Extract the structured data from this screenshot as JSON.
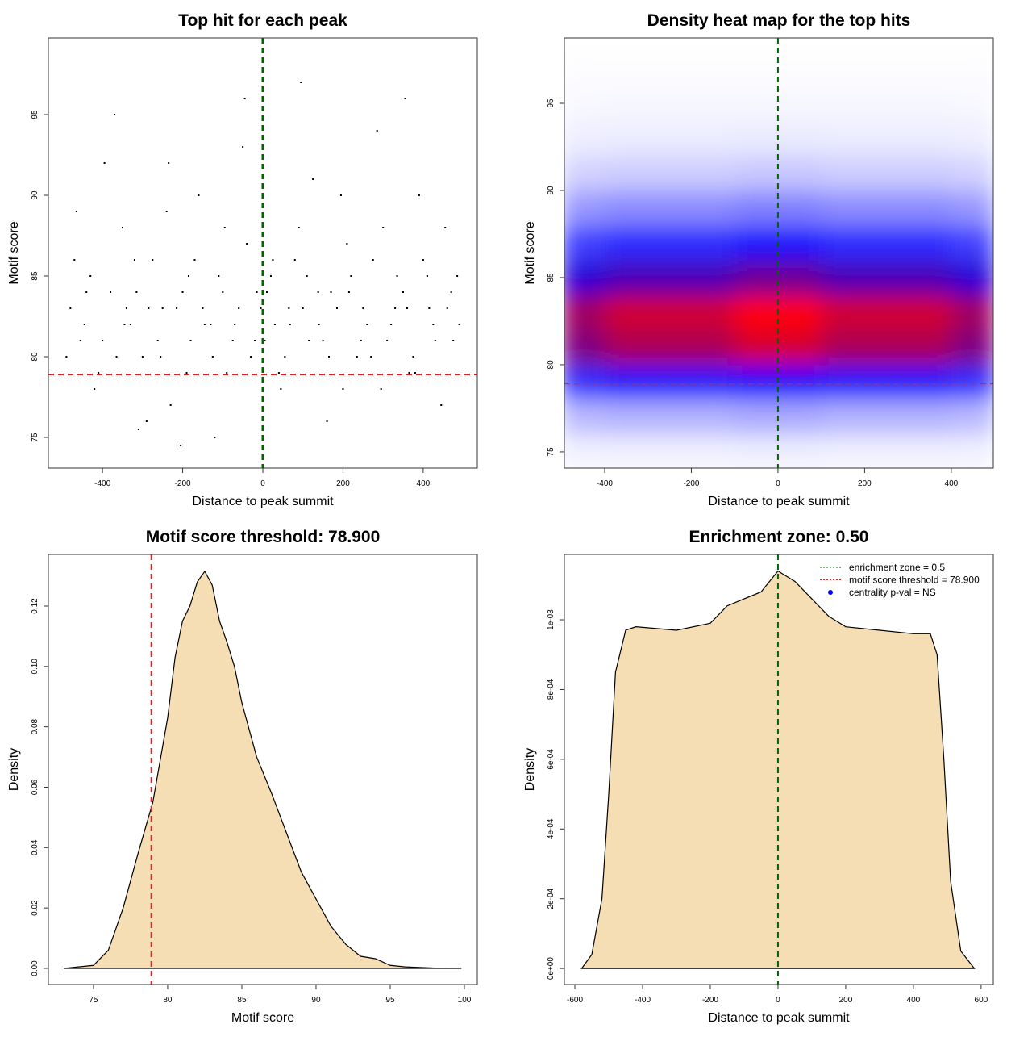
{
  "chart_data": [
    {
      "type": "scatter",
      "title": "Top hit for each peak",
      "x_label": "Distance to peak summit",
      "y_label": "Motif score",
      "xlim": [
        -535,
        535
      ],
      "ylim": [
        73.1,
        99.75
      ],
      "xticks": [
        -400,
        -200,
        0,
        200,
        400
      ],
      "yticks": [
        75,
        80,
        85,
        90,
        95
      ],
      "color": "#000000",
      "hline": {
        "value": 78.9,
        "color": "#dd2222"
      },
      "vline": {
        "value": 0,
        "color": "#006400"
      },
      "x": [
        -480,
        -455,
        -430,
        -410,
        -380,
        -350,
        -330,
        -300,
        -275,
        -250,
        -230,
        -200,
        -180,
        -160,
        -130,
        -110,
        -90,
        -60,
        -40,
        -20,
        10,
        30,
        55,
        80,
        100,
        125,
        150,
        170,
        200,
        220,
        250,
        270,
        300,
        320,
        350,
        380,
        400,
        430,
        460,
        485,
        -470,
        -445,
        -420,
        -395,
        -365,
        -340,
        -315,
        -290,
        -262,
        -240,
        -215,
        -190,
        -170,
        -145,
        -120,
        -100,
        -75,
        -50,
        -30,
        -5,
        20,
        45,
        68,
        90,
        115,
        138,
        160,
        185,
        210,
        235,
        260,
        285,
        310,
        335,
        365,
        390,
        415,
        445,
        470,
        490,
        -490,
        -465,
        -440,
        -400,
        -370,
        -345,
        -320,
        -285,
        -255,
        -235,
        -205,
        -185,
        -150,
        -125,
        -95,
        -70,
        -45,
        -15,
        5,
        25,
        40,
        65,
        95,
        110,
        140,
        165,
        195,
        215,
        245,
        275,
        295,
        330,
        355,
        375,
        410,
        425,
        455,
        475,
        -310,
        360
      ],
      "y": [
        83,
        81,
        85,
        79,
        84,
        88,
        82,
        80,
        86,
        83,
        77,
        84,
        81,
        90,
        82,
        85,
        79,
        83,
        87,
        81,
        84,
        82,
        80,
        86,
        83,
        91,
        81,
        84,
        78,
        85,
        83,
        80,
        88,
        82,
        84,
        79,
        86,
        81,
        83,
        85,
        86,
        82,
        78,
        92,
        80,
        83,
        84,
        76,
        81,
        89,
        83,
        79,
        86,
        82,
        75,
        84,
        81,
        93,
        80,
        83,
        85,
        78,
        82,
        88,
        81,
        84,
        76,
        83,
        87,
        80,
        82,
        94,
        81,
        85,
        79,
        90,
        83,
        77,
        84,
        82,
        80,
        89,
        84,
        81,
        95,
        82,
        86,
        83,
        80,
        92,
        74.5,
        85,
        83,
        80,
        88,
        82,
        96,
        84,
        81,
        86,
        79,
        83,
        97,
        85,
        82,
        80,
        90,
        84,
        81,
        86,
        78,
        83,
        96,
        80,
        85,
        82,
        88,
        81,
        75.5,
        83
      ]
    },
    {
      "type": "heatmap",
      "title": "Density heat map for the top hits",
      "x_label": "Distance to peak summit",
      "y_label": "Motif score",
      "xlim": [
        -493,
        497
      ],
      "ylim": [
        74.07,
        98.75
      ],
      "xticks": [
        -400,
        -200,
        0,
        200,
        400
      ],
      "yticks": [
        75,
        80,
        85,
        90,
        95
      ],
      "colors": [
        "#ffffff",
        "#0000ff",
        "#ff0000"
      ],
      "hline": {
        "value": 78.9,
        "color": "#dd2222"
      },
      "vline": {
        "value": 0,
        "color": "#006400"
      },
      "x": [
        -450,
        -350,
        -250,
        -150,
        -50,
        50,
        150,
        250,
        350,
        450
      ],
      "y": [
        75,
        77,
        79,
        81,
        83,
        85,
        87,
        89,
        91,
        93,
        95,
        97
      ],
      "z": [
        [
          0.0036,
          0.004,
          0.004,
          0.004,
          0.0044,
          0.0044,
          0.004,
          0.004,
          0.004,
          0.0036
        ],
        [
          0.018,
          0.02,
          0.02,
          0.02,
          0.022,
          0.022,
          0.02,
          0.02,
          0.02,
          0.018
        ],
        [
          0.054,
          0.06,
          0.06,
          0.06,
          0.066,
          0.066,
          0.06,
          0.06,
          0.06,
          0.054
        ],
        [
          0.099,
          0.11,
          0.11,
          0.11,
          0.121,
          0.121,
          0.11,
          0.11,
          0.11,
          0.099
        ],
        [
          0.108,
          0.12,
          0.12,
          0.12,
          0.132,
          0.132,
          0.12,
          0.12,
          0.12,
          0.108
        ],
        [
          0.0765,
          0.085,
          0.085,
          0.085,
          0.0935,
          0.0935,
          0.085,
          0.085,
          0.085,
          0.0765
        ],
        [
          0.0495,
          0.055,
          0.055,
          0.055,
          0.0605,
          0.0605,
          0.055,
          0.055,
          0.055,
          0.0495
        ],
        [
          0.027,
          0.03,
          0.03,
          0.03,
          0.033,
          0.033,
          0.03,
          0.03,
          0.03,
          0.027
        ],
        [
          0.0117,
          0.013,
          0.013,
          0.013,
          0.0143,
          0.0143,
          0.013,
          0.013,
          0.013,
          0.0117
        ],
        [
          0.0045,
          0.005,
          0.005,
          0.005,
          0.0055,
          0.0055,
          0.005,
          0.005,
          0.005,
          0.0045
        ],
        [
          0.0018,
          0.002,
          0.002,
          0.002,
          0.0022,
          0.0022,
          0.002,
          0.002,
          0.002,
          0.0018
        ],
        [
          0.00045,
          0.0005,
          0.0005,
          0.0005,
          0.00055,
          0.00055,
          0.0005,
          0.0005,
          0.0005,
          0.00045
        ]
      ]
    },
    {
      "type": "area",
      "title": "Motif score threshold: 78.900",
      "x_label": "Motif score",
      "y_label": "Density",
      "xlim": [
        71.96,
        100.87
      ],
      "ylim": [
        -0.00535,
        0.1371
      ],
      "xticks": [
        75,
        80,
        85,
        90,
        95,
        100
      ],
      "yticks": [
        {
          "value": 0,
          "label": "0.00"
        },
        0.02,
        0.04,
        0.06,
        0.08,
        {
          "value": 0.1,
          "label": "0.10"
        },
        0.12
      ],
      "fill": "#f5deb3",
      "color": "#000000",
      "vline": {
        "value": 78.9,
        "color": "#dd2222"
      },
      "x": [
        73,
        75,
        76,
        77,
        78,
        79,
        80,
        80.5,
        81,
        81.5,
        82,
        82.5,
        83,
        83.5,
        84,
        84.5,
        85,
        86,
        87,
        88,
        89,
        90,
        91,
        92,
        93,
        94,
        95,
        96,
        98,
        99.8
      ],
      "y": [
        0,
        0.001,
        0.006,
        0.02,
        0.038,
        0.055,
        0.083,
        0.103,
        0.115,
        0.12,
        0.128,
        0.1315,
        0.127,
        0.115,
        0.108,
        0.1,
        0.088,
        0.07,
        0.058,
        0.045,
        0.032,
        0.023,
        0.014,
        0.008,
        0.004,
        0.0032,
        0.001,
        0.0005,
        0.0001,
        0
      ]
    },
    {
      "type": "area",
      "title": "Enrichment zone: 0.50",
      "x_label": "Distance to peak summit",
      "y_label": "Density",
      "xlim": [
        -631,
        636
      ],
      "ylim": [
        -4.6e-05,
        0.0011875
      ],
      "xticks": [
        -600,
        -400,
        -200,
        0,
        200,
        400,
        600
      ],
      "yticks": [
        {
          "value": 0,
          "label": "0e+00"
        },
        {
          "value": 0.0002,
          "label": "2e-04"
        },
        {
          "value": 0.0004,
          "label": "4e-04"
        },
        {
          "value": 0.0006,
          "label": "6e-04"
        },
        {
          "value": 0.0008,
          "label": "8e-04"
        },
        {
          "value": 0.001,
          "label": "1e-03"
        }
      ],
      "fill": "#f5deb3",
      "color": "#000000",
      "vline": {
        "value": 0,
        "color": "#006400"
      },
      "legend": {
        "position": "top-right",
        "entries": [
          {
            "name": "enrichment zone = 0.5",
            "color": "#006400",
            "style": "dotted"
          },
          {
            "name": "motif score threshold = 78.900",
            "color": "#dd2222",
            "style": "dotted"
          },
          {
            "name": "centrality p-val = NS",
            "color": "#0000ff",
            "style": "point"
          }
        ]
      },
      "x": [
        -580,
        -550,
        -520,
        -500,
        -480,
        -450,
        -420,
        -300,
        -200,
        -150,
        -100,
        -50,
        0,
        50,
        100,
        150,
        200,
        300,
        400,
        450,
        470,
        490,
        510,
        540,
        580
      ],
      "y": [
        0,
        4e-05,
        0.0002,
        0.0005,
        0.00085,
        0.00097,
        0.00098,
        0.00097,
        0.00099,
        0.00104,
        0.00106,
        0.00108,
        0.00114,
        0.00111,
        0.00106,
        0.00101,
        0.00098,
        0.00097,
        0.00096,
        0.00096,
        0.0009,
        0.0006,
        0.00025,
        5e-05,
        0
      ]
    }
  ]
}
